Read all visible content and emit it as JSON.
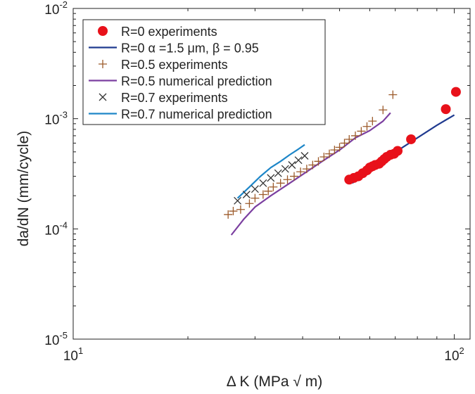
{
  "chart_data": {
    "type": "scatter",
    "title": "",
    "xlabel": "Δ K (MPa √ m)",
    "ylabel": "da/dN (mm/cycle)",
    "xscale": "log",
    "yscale": "log",
    "xlim": [
      10,
      110
    ],
    "ylim": [
      1e-05,
      0.01
    ],
    "grid": false,
    "legend_position": "top-left",
    "x_ticks": [
      {
        "value": 10,
        "base": "10",
        "exp": "1"
      },
      {
        "value": 100,
        "base": "10",
        "exp": "2"
      }
    ],
    "y_ticks": [
      {
        "value": 1e-05,
        "base": "10",
        "exp": "-5"
      },
      {
        "value": 0.0001,
        "base": "10",
        "exp": "-4"
      },
      {
        "value": 0.001,
        "base": "10",
        "exp": "-3"
      },
      {
        "value": 0.01,
        "base": "10",
        "exp": "-2"
      }
    ],
    "series": [
      {
        "name": "R=0 experiments",
        "kind": "marker",
        "marker": "circle",
        "color": "#e8111a",
        "x": [
          53.0,
          54.5,
          56.0,
          57.5,
          59.0,
          60.0,
          61.0,
          62.0,
          63.5,
          64.5,
          65.5,
          66.5,
          68.0,
          69.5,
          71.0,
          77.0,
          95.0,
          101.0
        ],
        "y": [
          0.00028,
          0.00029,
          0.0003,
          0.00032,
          0.00034,
          0.00036,
          0.00037,
          0.00038,
          0.00039,
          0.00041,
          0.00043,
          0.00045,
          0.00047,
          0.00048,
          0.00051,
          0.00065,
          0.00122,
          0.00175
        ]
      },
      {
        "name": "R=0 α =1.5 μm, β = 0.95",
        "kind": "line",
        "color": "#1f3a8f",
        "x": [
          54.0,
          60.0,
          66.0,
          72.0,
          80.0,
          90.0,
          100.0
        ],
        "y": [
          0.00026,
          0.00034,
          0.00043,
          0.00053,
          0.00067,
          0.00087,
          0.00108
        ]
      },
      {
        "name": "R=0.5 experiments",
        "kind": "marker",
        "marker": "plus",
        "color": "#9c5a2a",
        "x": [
          25.5,
          26.3,
          27.5,
          29.0,
          30.0,
          31.5,
          32.5,
          33.5,
          35.0,
          36.5,
          38.0,
          39.5,
          41.0,
          42.5,
          44.0,
          45.5,
          47.0,
          48.5,
          50.0,
          51.5,
          53.0,
          55.0,
          57.0,
          59.0,
          61.0,
          65.0,
          69.0
        ],
        "y": [
          0.000135,
          0.000145,
          0.00015,
          0.00017,
          0.00019,
          0.000205,
          0.00022,
          0.00024,
          0.00026,
          0.00028,
          0.0003,
          0.00033,
          0.00035,
          0.00038,
          0.00041,
          0.00045,
          0.00048,
          0.00052,
          0.00055,
          0.0006,
          0.00065,
          0.0007,
          0.00077,
          0.00085,
          0.00095,
          0.0012,
          0.00165
        ]
      },
      {
        "name": "R=0.5 numerical prediction",
        "kind": "line",
        "color": "#7b3fa0",
        "x": [
          26.0,
          28.0,
          30.0,
          33.0,
          37.0,
          41.0,
          45.0,
          50.0,
          55.0,
          60.0,
          65.0,
          68.0
        ],
        "y": [
          8.8e-05,
          0.000122,
          0.000158,
          0.0002,
          0.00026,
          0.00033,
          0.00041,
          0.00052,
          0.00067,
          0.00078,
          0.00095,
          0.00113
        ]
      },
      {
        "name": "R=0.7 experiments",
        "kind": "marker",
        "marker": "x",
        "color": "#333333",
        "x": [
          27.0,
          28.5,
          30.0,
          31.5,
          33.0,
          34.5,
          36.0,
          37.5,
          39.0,
          40.5
        ],
        "y": [
          0.00018,
          0.000205,
          0.00023,
          0.00026,
          0.00029,
          0.00032,
          0.00035,
          0.00038,
          0.00042,
          0.00046
        ]
      },
      {
        "name": "R=0.7 numerical prediction",
        "kind": "line",
        "color": "#1d86c8",
        "x": [
          27.0,
          29.0,
          31.0,
          33.0,
          35.0,
          37.0,
          39.0,
          40.5
        ],
        "y": [
          0.00019,
          0.00024,
          0.0003,
          0.00036,
          0.00041,
          0.00047,
          0.00053,
          0.00058
        ]
      }
    ]
  }
}
